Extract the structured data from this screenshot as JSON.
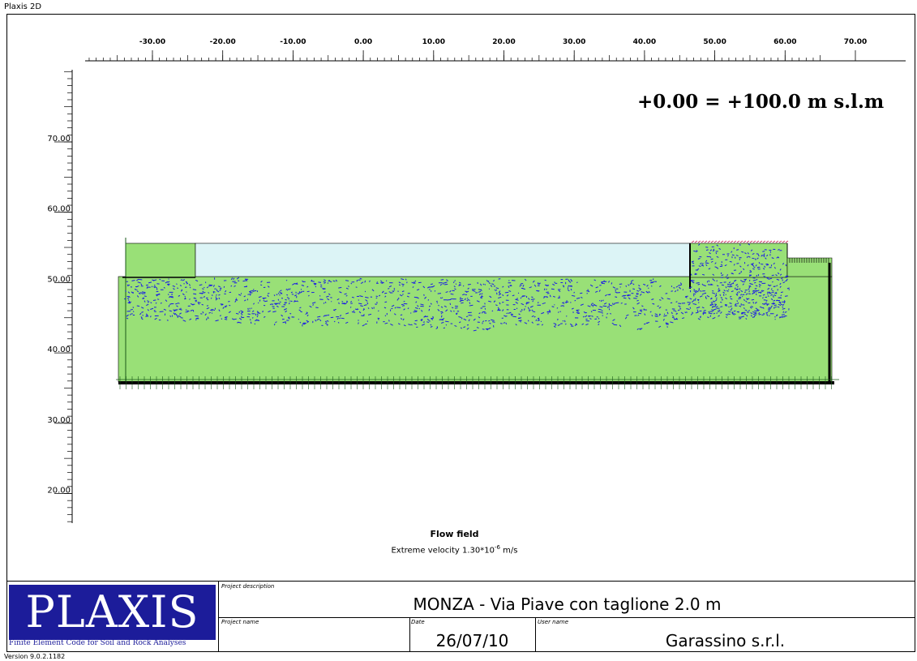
{
  "window": {
    "title": "Plaxis 2D",
    "version": "Version 9.0.2.1182"
  },
  "plot": {
    "x_ticks": [
      "-30.00",
      "-20.00",
      "-10.00",
      "0.00",
      "10.00",
      "20.00",
      "30.00",
      "40.00",
      "50.00",
      "60.00",
      "70.00"
    ],
    "y_ticks": [
      "70.00",
      "60.00",
      "50.00",
      "40.00",
      "30.00",
      "20.00"
    ],
    "reference_note": "+0.00 = +100.0 m s.l.m",
    "caption_title": "Flow field",
    "caption_subtitle_prefix": "Extreme velocity 1.30*10",
    "caption_subtitle_exp": "-6",
    "caption_subtitle_unit": " m/s",
    "colors": {
      "soil": "#99e077",
      "water": "#dcf4f6",
      "arrows": "#1a1ae6"
    }
  },
  "title_block": {
    "logo_text": "PLAXIS",
    "logo_subtitle": "Finite Element Code for Soil and Rock Analyses",
    "project_description_label": "Project description",
    "project_description": "MONZA - Via Piave con taglione 2.0 m",
    "project_name_label": "Project name",
    "project_name": "",
    "date_label": "Date",
    "date": "26/07/10",
    "user_name_label": "User name",
    "user_name": "Garassino s.r.l."
  }
}
